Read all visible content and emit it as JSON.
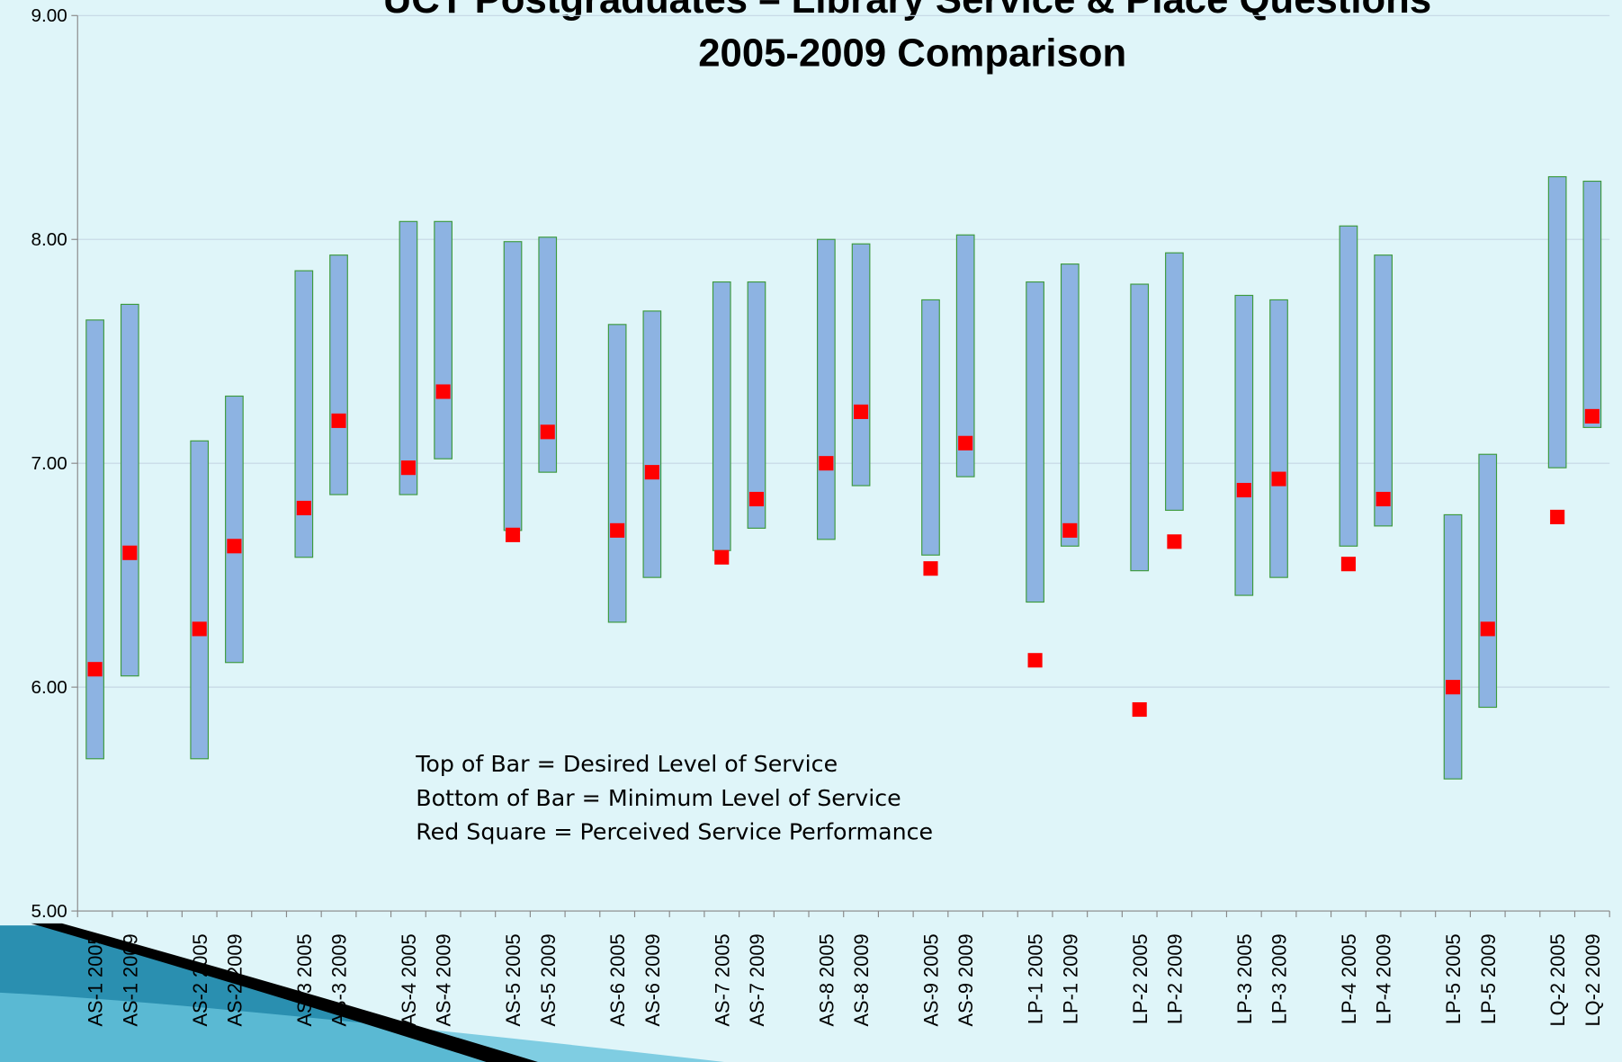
{
  "chart_data": {
    "type": "floating-bar",
    "title": "UCT Postgraduates – Library Service & Place Questions",
    "subtitle": "2005-2009 Comparison",
    "annotations": [
      "Top of Bar = Desired Level of Service",
      "Bottom of Bar = Minimum Level of Service",
      "Red Square = Perceived Service Performance"
    ],
    "categories": [
      "AS-1 2005",
      "AS-1 2009",
      null,
      "AS-2 2005",
      "AS-2 2009",
      null,
      "AS-3 2005",
      "AS-3 2009",
      null,
      "AS-4 2005",
      "AS-4 2009",
      null,
      "AS-5 2005",
      "AS-5 2009",
      null,
      "AS-6 2005",
      "AS-6 2009",
      null,
      "AS-7 2005",
      "AS-7 2009",
      null,
      "AS-8 2005",
      "AS-8 2009",
      null,
      "AS-9 2005",
      "AS-9 2009",
      null,
      "LP-1 2005",
      "LP-1 2009",
      null,
      "LP-2 2005",
      "LP-2 2009",
      null,
      "LP-3 2005",
      "LP-3 2009",
      null,
      "LP-4 2005",
      "LP-4 2009",
      null,
      "LP-5 2005",
      "LP-5 2009",
      null,
      "LQ-2 2005",
      "LQ-2 2009"
    ],
    "minimum": [
      5.68,
      6.05,
      null,
      5.68,
      6.11,
      null,
      6.58,
      6.86,
      null,
      6.86,
      7.02,
      null,
      6.7,
      6.96,
      null,
      6.29,
      6.49,
      null,
      6.61,
      6.71,
      null,
      6.66,
      6.9,
      null,
      6.59,
      6.94,
      null,
      6.38,
      6.63,
      null,
      6.52,
      6.79,
      null,
      6.41,
      6.49,
      null,
      6.63,
      6.72,
      null,
      5.59,
      5.91,
      null,
      6.98,
      7.16
    ],
    "desired": [
      7.64,
      7.71,
      null,
      7.1,
      7.3,
      null,
      7.86,
      7.93,
      null,
      8.08,
      8.08,
      null,
      7.99,
      8.01,
      null,
      7.62,
      7.68,
      null,
      7.81,
      7.81,
      null,
      8.0,
      7.98,
      null,
      7.73,
      8.02,
      null,
      7.81,
      7.89,
      null,
      7.8,
      7.94,
      null,
      7.75,
      7.73,
      null,
      8.06,
      7.93,
      null,
      6.77,
      7.04,
      null,
      8.28,
      8.26
    ],
    "perceived": [
      6.08,
      6.6,
      null,
      6.26,
      6.63,
      null,
      6.8,
      7.19,
      null,
      6.98,
      7.32,
      null,
      6.68,
      7.14,
      null,
      6.7,
      6.96,
      null,
      6.58,
      6.84,
      null,
      7.0,
      7.23,
      null,
      6.53,
      7.09,
      null,
      6.12,
      6.7,
      null,
      5.9,
      6.65,
      null,
      6.88,
      6.93,
      null,
      6.55,
      6.84,
      null,
      6.0,
      6.26,
      null,
      6.76,
      7.21
    ],
    "bar_color": "#8db3e2",
    "bar_edge_color": "#3c9a3c",
    "marker_color": "#ff0000",
    "ylim": [
      5,
      9
    ],
    "yticks": [
      {
        "value": 5,
        "label": "5.00"
      },
      {
        "value": 6,
        "label": "6.00"
      },
      {
        "value": 7,
        "label": "7.00"
      },
      {
        "value": 8,
        "label": "8.00"
      },
      {
        "value": 9,
        "label": "9.00"
      }
    ],
    "grid": true
  }
}
